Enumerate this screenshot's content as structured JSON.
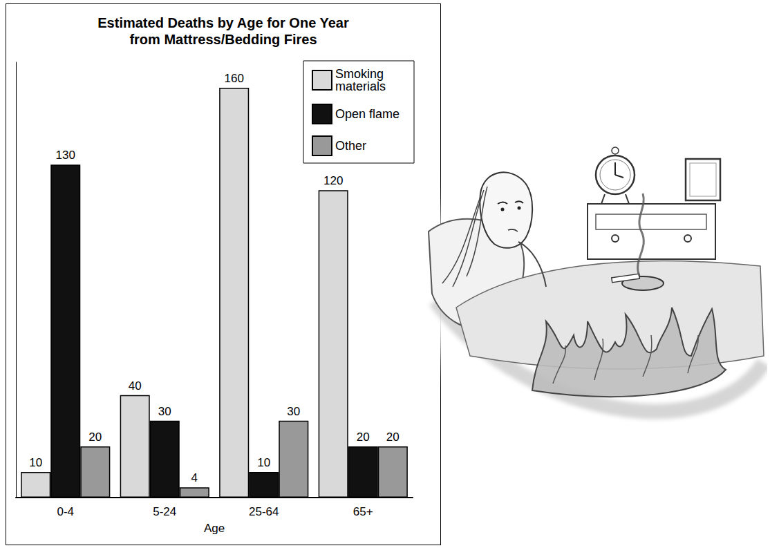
{
  "chart_data": {
    "type": "bar",
    "title": "Estimated Deaths by Age for One Year from Mattress/Bedding Fires",
    "x_label": "Age",
    "categories": [
      "0-4",
      "5-24",
      "25-64",
      "65+"
    ],
    "series": [
      {
        "name": "Smoking materials",
        "color": "#d9d9d9",
        "values": [
          10,
          40,
          160,
          120
        ]
      },
      {
        "name": "Open flame",
        "color": "#111111",
        "values": [
          130,
          30,
          10,
          20
        ]
      },
      {
        "name": "Other",
        "color": "#999999",
        "values": [
          20,
          4,
          30,
          20
        ]
      }
    ],
    "ylim": [
      0,
      170
    ],
    "grid": false,
    "legend": "top-right",
    "data_labels": true,
    "tick_labels": "x"
  }
}
